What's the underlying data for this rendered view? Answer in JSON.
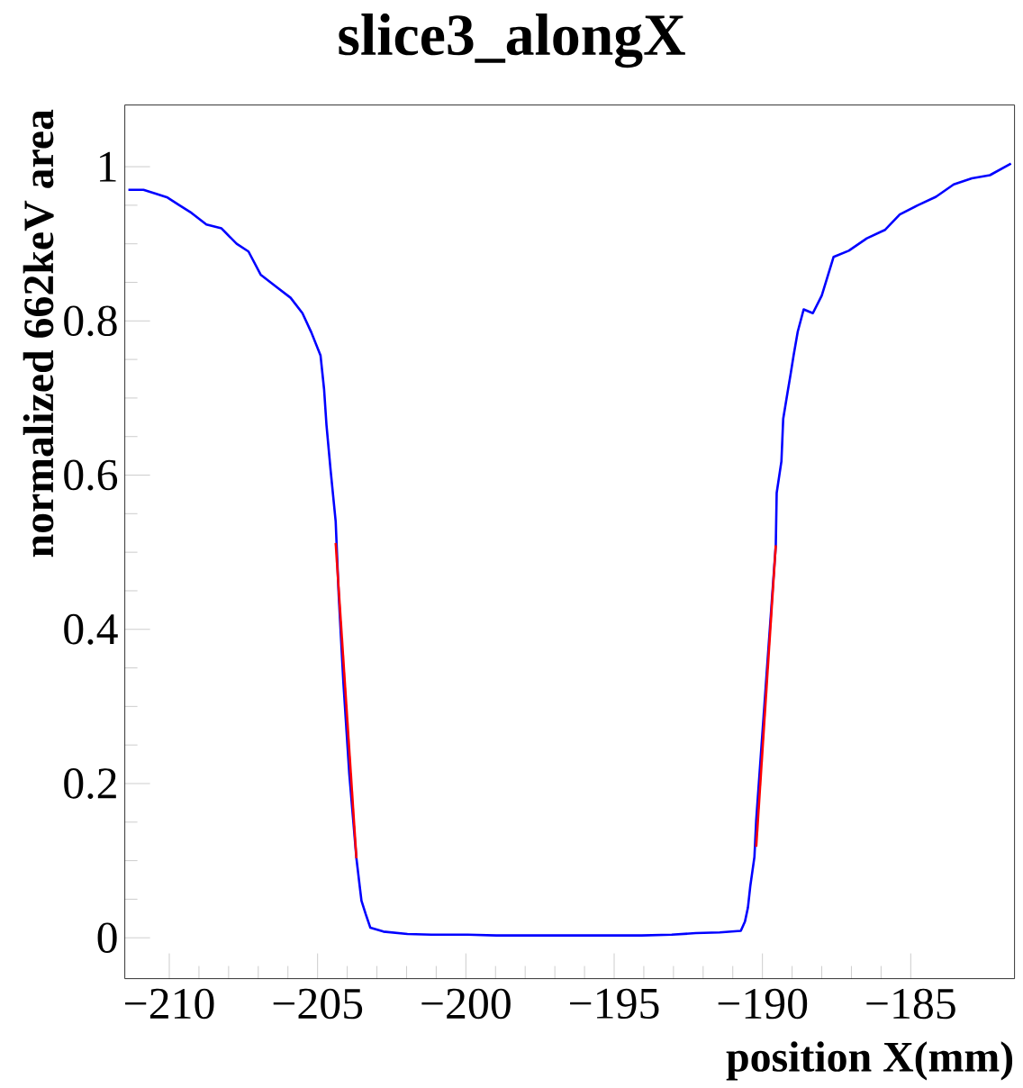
{
  "chart_data": {
    "type": "line",
    "title": "slice3_alongX",
    "xlabel": "position X(mm)",
    "ylabel": "normalized 662keV area",
    "xlim": [
      -211.5,
      -181.5
    ],
    "ylim": [
      -0.053,
      1.08
    ],
    "xticks": [
      {
        "value": -210,
        "label": "−210"
      },
      {
        "value": -205,
        "label": "−205"
      },
      {
        "value": -200,
        "label": "−200"
      },
      {
        "value": -195,
        "label": "−195"
      },
      {
        "value": -190,
        "label": "−190"
      },
      {
        "value": -185,
        "label": "−185"
      }
    ],
    "yticks": [
      0,
      0.2,
      0.4,
      0.6,
      0.8,
      1
    ],
    "series": [
      {
        "color": "#0000ff",
        "x": [
          -211.38,
          -210.87,
          -210.46,
          -210.06,
          -209.66,
          -209.25,
          -208.75,
          -208.24,
          -207.73,
          -207.33,
          -206.92,
          -206.42,
          -205.91,
          -205.51,
          -205.21,
          -204.9,
          -204.78,
          -204.7,
          -204.56,
          -204.39,
          -204.29,
          -204.13,
          -203.93,
          -203.69,
          -203.58,
          -203.52,
          -203.38,
          -203.22,
          -202.78,
          -201.97,
          -201.16,
          -199.94,
          -198.97,
          -196.5,
          -194.07,
          -193.06,
          -192.25,
          -191.44,
          -190.73,
          -190.59,
          -190.49,
          -190.41,
          -190.27,
          -190.21,
          -189.55,
          -189.52,
          -189.36,
          -189.3,
          -189.15,
          -189.05,
          -188.95,
          -188.81,
          -188.61,
          -188.3,
          -188.0,
          -187.6,
          -187.09,
          -186.48,
          -185.87,
          -185.37,
          -184.76,
          -184.15,
          -183.55,
          -182.94,
          -182.33,
          -181.62
        ],
        "values": [
          0.97,
          0.97,
          0.965,
          0.96,
          0.95,
          0.94,
          0.925,
          0.92,
          0.9,
          0.89,
          0.86,
          0.845,
          0.83,
          0.81,
          0.785,
          0.755,
          0.711,
          0.665,
          0.606,
          0.54,
          0.446,
          0.331,
          0.212,
          0.103,
          0.067,
          0.048,
          0.031,
          0.013,
          0.008,
          0.005,
          0.004,
          0.004,
          0.003,
          null,
          0.003,
          0.004,
          0.006,
          0.007,
          0.009,
          0.021,
          0.039,
          0.067,
          0.105,
          0.153,
          0.509,
          0.577,
          0.618,
          0.673,
          0.708,
          0.731,
          0.755,
          0.786,
          0.815,
          0.81,
          0.833,
          0.883,
          0.891,
          0.907,
          0.918,
          0.938,
          0.95,
          0.961,
          0.977,
          0.985,
          0.989,
          1.004
        ]
      },
      {
        "color": "#ff0000",
        "x": [
          -204.39,
          -203.69
        ],
        "values": [
          0.512,
          0.103
        ]
      },
      {
        "color": "#ff0000",
        "x": [
          -190.21,
          -189.55
        ],
        "values": [
          0.118,
          0.509
        ]
      }
    ]
  }
}
